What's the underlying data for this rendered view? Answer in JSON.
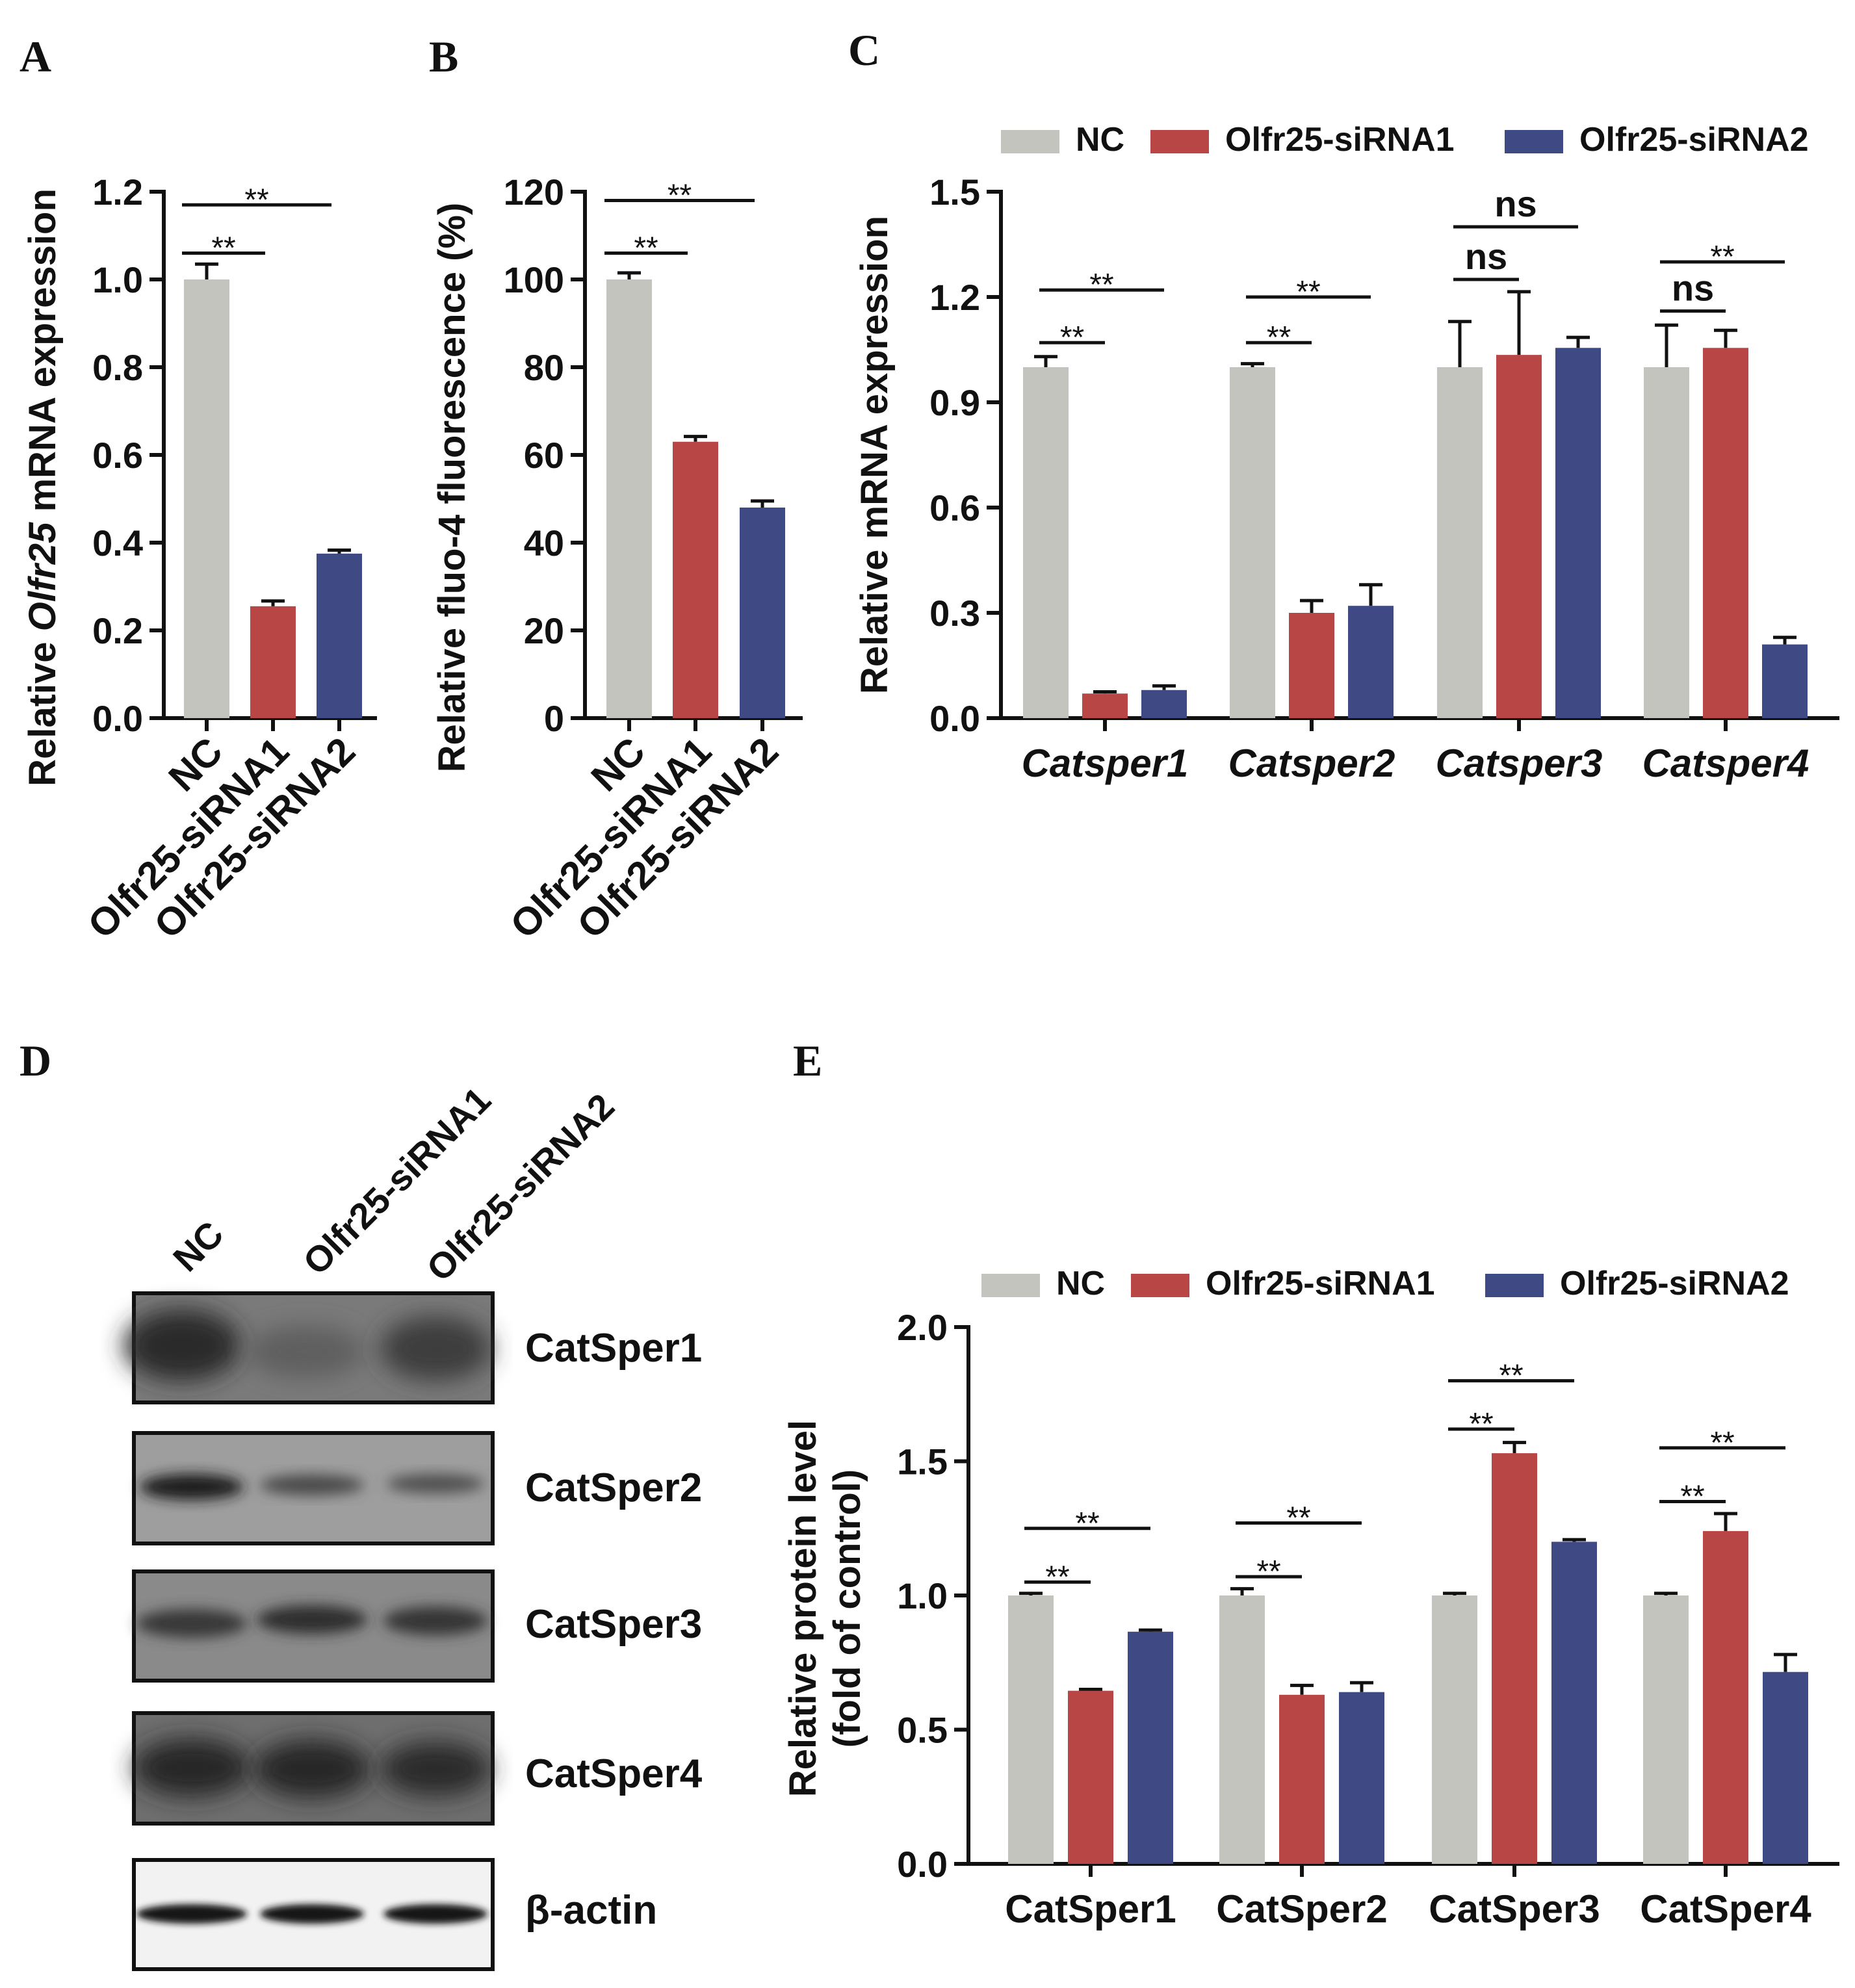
{
  "colors": {
    "NC": "#c4c4be",
    "siRNA1": "#b84645",
    "siRNA2": "#3f4a85",
    "axis": "#111111"
  },
  "chart_data": [
    {
      "panel": "A",
      "type": "bar",
      "categories": [
        "NC",
        "Olfr25-siRNA1",
        "Olfr25-siRNA2"
      ],
      "values": [
        1.0,
        0.255,
        0.375
      ],
      "errors": [
        0.035,
        0.012,
        0.008
      ],
      "ylabel_parts": [
        "Relative ",
        "Olfr25",
        " mRNA expression"
      ],
      "ylim": [
        0,
        1.2
      ],
      "yticks": [
        "0.0",
        "0.2",
        "0.4",
        "0.6",
        "0.8",
        "1.0",
        "1.2"
      ],
      "significance": [
        {
          "from": 0,
          "to": 1,
          "level": 1.06,
          "label": "**"
        },
        {
          "from": 0,
          "to": 2,
          "level": 1.17,
          "label": "**"
        }
      ]
    },
    {
      "panel": "B",
      "type": "bar",
      "categories": [
        "NC",
        "Olfr25-siRNA1",
        "Olfr25-siRNA2"
      ],
      "values": [
        100,
        63,
        48
      ],
      "errors": [
        1.5,
        1.2,
        1.5
      ],
      "ylabel": "Relative fluo-4 fluorescence (%)",
      "ylim": [
        0,
        120
      ],
      "yticks": [
        "0",
        "20",
        "40",
        "60",
        "80",
        "100",
        "120"
      ],
      "significance": [
        {
          "from": 0,
          "to": 1,
          "level": 106,
          "label": "**"
        },
        {
          "from": 0,
          "to": 2,
          "level": 118,
          "label": "**"
        }
      ]
    },
    {
      "panel": "C",
      "type": "bar",
      "categories": [
        "Catsper1",
        "Catsper2",
        "Catsper3",
        "Catsper4"
      ],
      "series": [
        {
          "name": "NC",
          "values": [
            1.0,
            1.0,
            1.0,
            1.0
          ],
          "errors": [
            0.03,
            0.01,
            0.13,
            0.12
          ]
        },
        {
          "name": "Olfr25-siRNA1",
          "values": [
            0.07,
            0.3,
            1.035,
            1.055
          ],
          "errors": [
            0.005,
            0.035,
            0.18,
            0.05
          ]
        },
        {
          "name": "Olfr25-siRNA2",
          "values": [
            0.08,
            0.32,
            1.055,
            0.21
          ],
          "errors": [
            0.012,
            0.06,
            0.03,
            0.02
          ]
        }
      ],
      "ylabel": "Relative mRNA expression",
      "ylim": [
        0,
        1.5
      ],
      "yticks": [
        "0.0",
        "0.3",
        "0.6",
        "0.9",
        "1.2",
        "1.5"
      ],
      "significance": [
        {
          "group": 0,
          "from": 0,
          "to": 1,
          "level": 1.07,
          "label": "**"
        },
        {
          "group": 0,
          "from": 0,
          "to": 2,
          "level": 1.22,
          "label": "**"
        },
        {
          "group": 1,
          "from": 0,
          "to": 1,
          "level": 1.07,
          "label": "**"
        },
        {
          "group": 1,
          "from": 0,
          "to": 2,
          "level": 1.2,
          "label": "**"
        },
        {
          "group": 2,
          "from": 0,
          "to": 1,
          "level": 1.25,
          "label": "ns"
        },
        {
          "group": 2,
          "from": 0,
          "to": 2,
          "level": 1.4,
          "label": "ns"
        },
        {
          "group": 3,
          "from": 0,
          "to": 1,
          "level": 1.16,
          "label": "ns"
        },
        {
          "group": 3,
          "from": 0,
          "to": 2,
          "level": 1.3,
          "label": "**"
        }
      ]
    },
    {
      "panel": "E",
      "type": "bar",
      "categories": [
        "CatSper1",
        "CatSper2",
        "CatSper3",
        "CatSper4"
      ],
      "series": [
        {
          "name": "NC",
          "values": [
            1.0,
            1.0,
            1.0,
            1.0
          ],
          "errors": [
            0.008,
            0.025,
            0.008,
            0.008
          ]
        },
        {
          "name": "Olfr25-siRNA1",
          "values": [
            0.645,
            0.63,
            1.53,
            1.24
          ],
          "errors": [
            0.005,
            0.035,
            0.04,
            0.065
          ]
        },
        {
          "name": "Olfr25-siRNA2",
          "values": [
            0.865,
            0.64,
            1.2,
            0.715
          ],
          "errors": [
            0.006,
            0.035,
            0.008,
            0.065
          ]
        }
      ],
      "ylabel_lines": [
        "Relative protein level",
        "(fold of control)"
      ],
      "ylim": [
        0,
        2.0
      ],
      "yticks": [
        "0.0",
        "0.5",
        "1.0",
        "1.5",
        "2.0"
      ],
      "significance": [
        {
          "group": 0,
          "from": 0,
          "to": 1,
          "level": 1.05,
          "label": "**"
        },
        {
          "group": 0,
          "from": 0,
          "to": 2,
          "level": 1.25,
          "label": "**"
        },
        {
          "group": 1,
          "from": 0,
          "to": 1,
          "level": 1.07,
          "label": "**"
        },
        {
          "group": 1,
          "from": 0,
          "to": 2,
          "level": 1.27,
          "label": "**"
        },
        {
          "group": 2,
          "from": 0,
          "to": 1,
          "level": 1.62,
          "label": "**"
        },
        {
          "group": 2,
          "from": 0,
          "to": 2,
          "level": 1.8,
          "label": "**"
        },
        {
          "group": 3,
          "from": 0,
          "to": 1,
          "level": 1.35,
          "label": "**"
        },
        {
          "group": 3,
          "from": 0,
          "to": 2,
          "level": 1.55,
          "label": "**"
        }
      ]
    }
  ],
  "panel_letters": {
    "A": "A",
    "B": "B",
    "C": "C",
    "D": "D",
    "E": "E"
  },
  "legend": [
    "NC",
    "Olfr25-siRNA1",
    "Olfr25-siRNA2"
  ],
  "blot": {
    "lanes": [
      "NC",
      "Olfr25-siRNA1",
      "Olfr25-siRNA2"
    ],
    "bands": [
      "CatSper1",
      "CatSper2",
      "CatSper3",
      "CatSper4",
      "β-actin"
    ]
  }
}
